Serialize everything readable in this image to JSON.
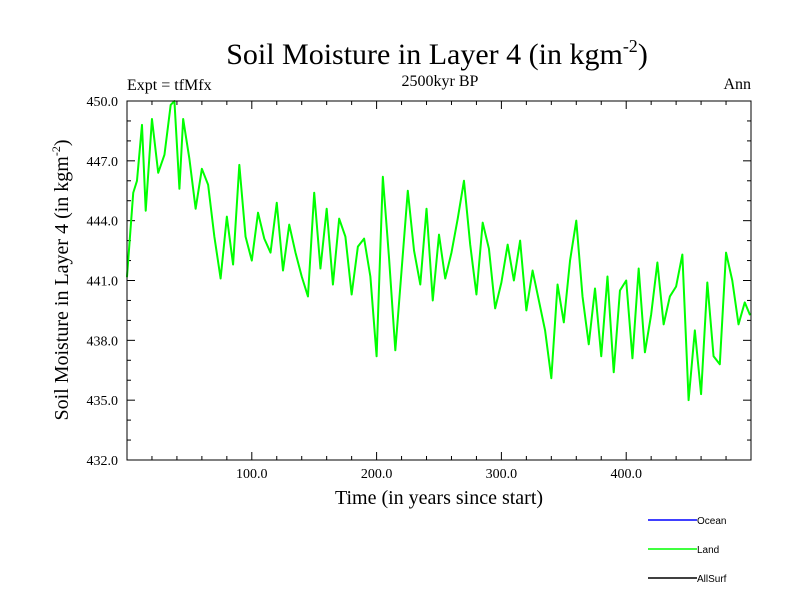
{
  "chart_data": {
    "type": "line",
    "title": "Soil Moisture in Layer 4 (in kgm",
    "title_sup": "-2",
    "title_close": ")",
    "subtitle": "2500kyr BP",
    "left_label": "Expt = tfMfx",
    "right_label": "Ann",
    "xlabel": "Time (in years since start)",
    "ylabel": "Soil Moisture in Layer 4 (in kgm",
    "ylabel_sup": "-2",
    "ylabel_close": ")",
    "xlim": [
      0,
      500
    ],
    "ylim": [
      432,
      450
    ],
    "xticks": [
      100,
      200,
      300,
      400
    ],
    "xtick_labels": [
      "100.0",
      "200.0",
      "300.0",
      "400.0"
    ],
    "yticks": [
      432,
      435,
      438,
      441,
      444,
      447,
      450
    ],
    "ytick_labels": [
      "432.0",
      "435.0",
      "438.0",
      "441.0",
      "444.0",
      "447.0",
      "450.0"
    ],
    "grid": false,
    "legend_position": "bottom-right",
    "series": [
      {
        "name": "Ocean",
        "color": "#0000ff",
        "values": []
      },
      {
        "name": "Land",
        "color": "#00ff00",
        "x": [
          0,
          5,
          8,
          12,
          15,
          20,
          25,
          30,
          35,
          38,
          42,
          45,
          50,
          55,
          60,
          65,
          70,
          75,
          80,
          85,
          90,
          95,
          100,
          105,
          110,
          115,
          120,
          125,
          130,
          135,
          140,
          145,
          150,
          155,
          160,
          165,
          170,
          175,
          180,
          185,
          190,
          195,
          200,
          205,
          210,
          215,
          220,
          225,
          230,
          235,
          240,
          245,
          250,
          255,
          260,
          265,
          270,
          275,
          280,
          285,
          290,
          295,
          300,
          305,
          310,
          315,
          320,
          325,
          330,
          335,
          340,
          345,
          350,
          355,
          360,
          365,
          370,
          375,
          380,
          385,
          390,
          395,
          400,
          405,
          410,
          415,
          420,
          425,
          430,
          435,
          440,
          445,
          450,
          455,
          460,
          465,
          470,
          475,
          480,
          485,
          490,
          495,
          499
        ],
        "y": [
          441.2,
          445.4,
          446.0,
          448.8,
          444.5,
          449.1,
          446.4,
          447.3,
          449.8,
          450.0,
          445.6,
          449.1,
          447.1,
          444.6,
          446.6,
          445.8,
          443.2,
          441.1,
          444.2,
          441.8,
          446.8,
          443.2,
          442.0,
          444.4,
          443.1,
          442.4,
          444.9,
          441.5,
          443.8,
          442.4,
          441.2,
          440.2,
          445.4,
          441.6,
          444.6,
          440.8,
          444.1,
          443.2,
          440.3,
          442.7,
          443.1,
          441.2,
          437.2,
          446.2,
          442.1,
          437.5,
          441.5,
          445.5,
          442.5,
          440.8,
          444.6,
          440.0,
          443.3,
          441.1,
          442.4,
          444.1,
          446.0,
          442.8,
          440.3,
          443.9,
          442.6,
          439.6,
          440.9,
          442.8,
          441.0,
          443.0,
          439.5,
          441.5,
          440.0,
          438.5,
          436.1,
          440.8,
          438.9,
          442.0,
          444.0,
          440.2,
          437.8,
          440.6,
          437.2,
          441.2,
          436.4,
          440.5,
          441.0,
          437.1,
          441.6,
          437.4,
          439.3,
          441.9,
          438.8,
          440.2,
          440.7,
          442.3,
          435.0,
          438.5,
          435.3,
          440.9,
          437.2,
          436.8,
          442.4,
          441.0,
          438.8,
          439.9,
          439.3
        ]
      },
      {
        "name": "AllSurf",
        "color": "#000000",
        "values": []
      }
    ]
  }
}
